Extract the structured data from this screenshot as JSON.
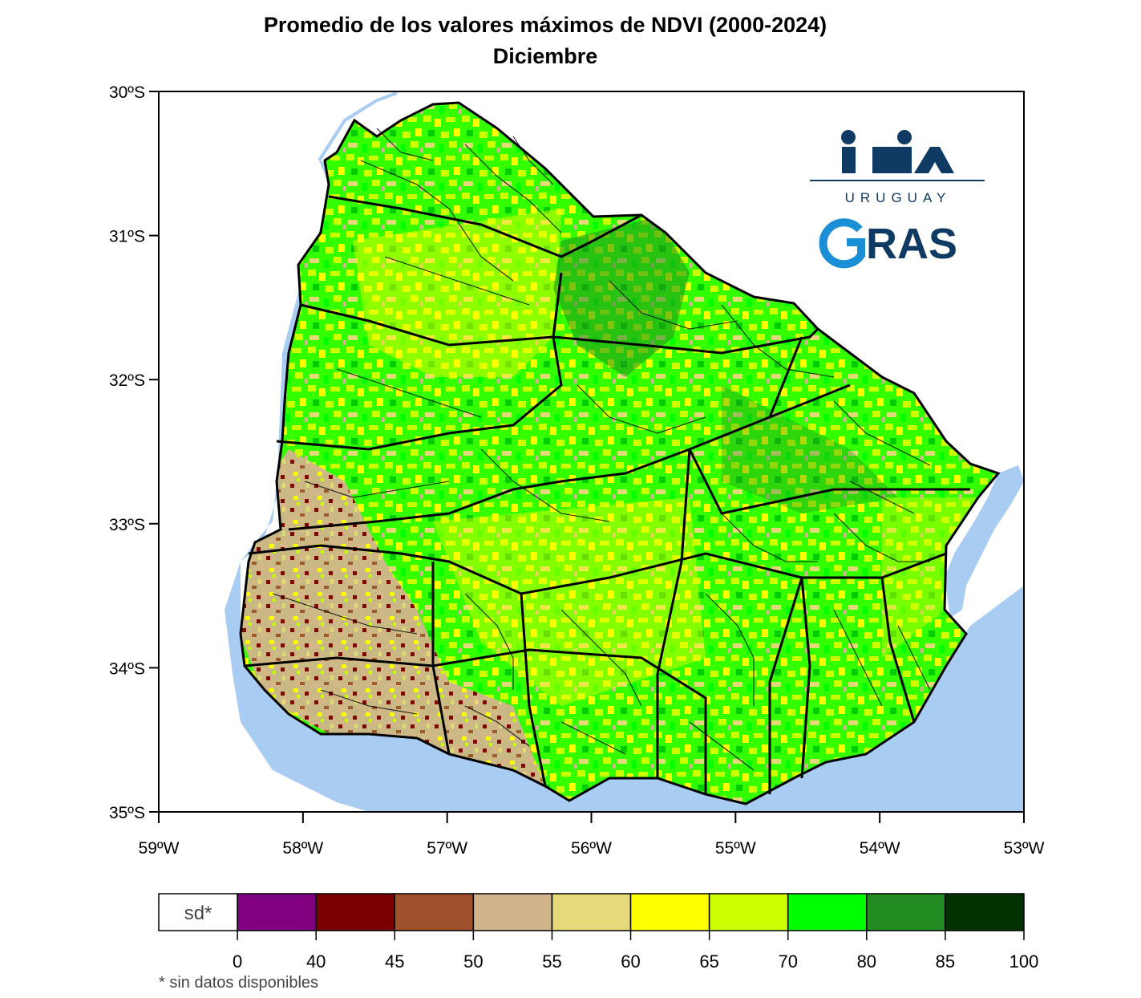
{
  "title": "Promedio de los valores máximos de NDVI (2000-2024)",
  "subtitle": "Diciembre",
  "map": {
    "region": "Uruguay",
    "lat_ticks": [
      "30ºS",
      "31ºS",
      "32ºS",
      "33ºS",
      "34ºS",
      "35ºS"
    ],
    "lon_ticks": [
      "59ºW",
      "58ºW",
      "57ºW",
      "56ºW",
      "55ºW",
      "54ºW",
      "53ºW"
    ],
    "lat_range": [
      -35,
      -30
    ],
    "lon_range": [
      -59,
      -53
    ],
    "water_color": "#a9cdf2"
  },
  "logos": {
    "inia_text": "INIA",
    "inia_sub": "URUGUAY",
    "gras_text": "GRAS",
    "inia_color": "#0f3a63"
  },
  "legend": {
    "no_data_label": "sd*",
    "classes": [
      {
        "label": "sd*",
        "color": "#ffffff"
      },
      {
        "from": 0,
        "to": 40,
        "color": "#800080"
      },
      {
        "from": 40,
        "to": 45,
        "color": "#7a0000"
      },
      {
        "from": 45,
        "to": 50,
        "color": "#a0522d"
      },
      {
        "from": 50,
        "to": 55,
        "color": "#d2b48c"
      },
      {
        "from": 55,
        "to": 60,
        "color": "#e6d97a"
      },
      {
        "from": 60,
        "to": 65,
        "color": "#ffff00"
      },
      {
        "from": 65,
        "to": 70,
        "color": "#ccff00"
      },
      {
        "from": 70,
        "to": 80,
        "color": "#00ff00"
      },
      {
        "from": 80,
        "to": 85,
        "color": "#228b22"
      },
      {
        "from": 85,
        "to": 100,
        "color": "#003300"
      }
    ],
    "ticks": [
      "0",
      "40",
      "45",
      "50",
      "55",
      "60",
      "65",
      "70",
      "80",
      "85",
      "100"
    ]
  },
  "footnote": "* sin datos disponibles"
}
